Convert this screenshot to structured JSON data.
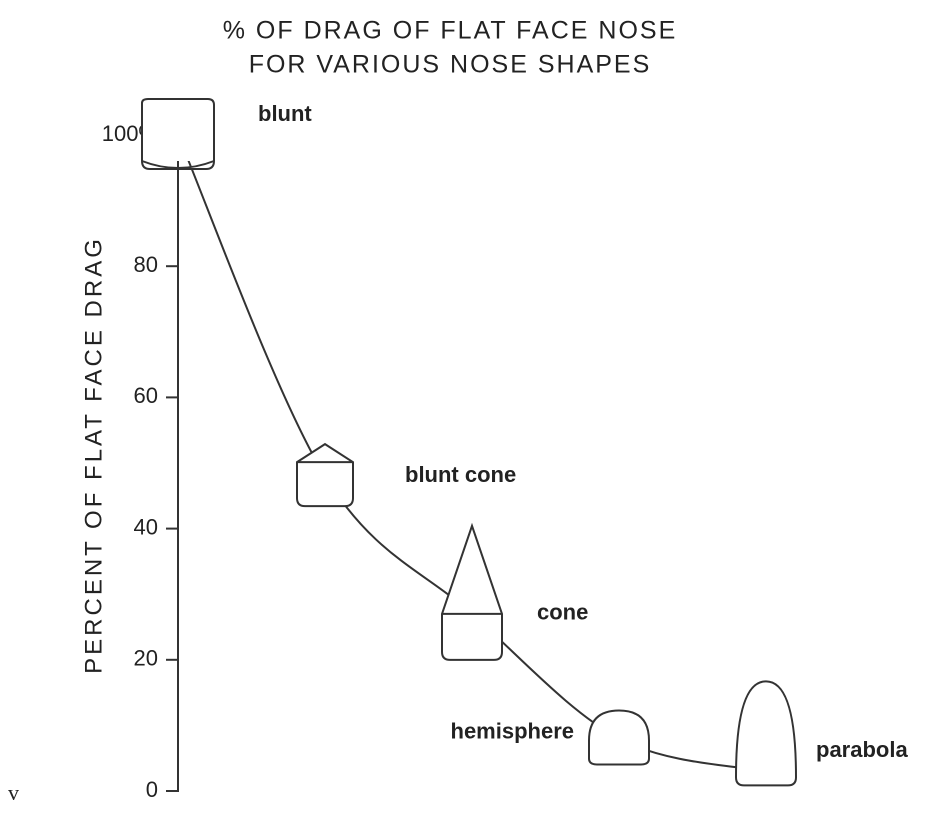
{
  "chart_data": {
    "type": "line",
    "title": [
      "% OF DRAG OF FLAT FACE NOSE",
      "FOR VARIOUS NOSE SHAPES"
    ],
    "y_label": "PERCENT OF FLAT FACE DRAG",
    "categories": [
      "blunt",
      "blunt cone",
      "cone",
      "hemisphere",
      "parabola"
    ],
    "values": [
      100,
      48,
      27,
      8,
      3
    ],
    "color": "#333333",
    "ylim": [
      0,
      100
    ],
    "yticks": [
      0,
      20,
      40,
      60,
      80,
      {
        "value": 100,
        "label": "100%"
      }
    ],
    "annotation": "v"
  }
}
